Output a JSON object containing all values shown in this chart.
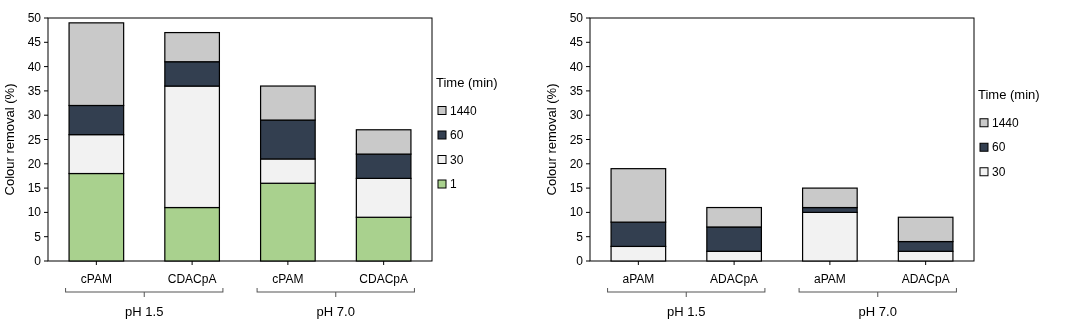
{
  "chart_data": [
    {
      "type": "bar",
      "stacked": true,
      "categories": [
        "cPAM",
        "CDACpA",
        "cPAM",
        "CDACpA"
      ],
      "ylabel": "Colour removal (%)",
      "ylim": [
        0,
        50
      ],
      "yticks": [
        0,
        5,
        10,
        15,
        20,
        25,
        30,
        35,
        40,
        45,
        50
      ],
      "legend": "right",
      "legend_title": "Time (min)",
      "annotations": [
        "pH 1.5",
        "pH 7.0"
      ],
      "series": [
        {
          "name": "1",
          "color": "#a9d18e",
          "values": [
            18,
            11,
            16,
            9
          ]
        },
        {
          "name": "30",
          "color": "#f2f2f2",
          "values": [
            8,
            25,
            5,
            8
          ]
        },
        {
          "name": "60",
          "color": "#333f50",
          "values": [
            6,
            5,
            8,
            5
          ]
        },
        {
          "name": "1440",
          "color": "#c9c9c9",
          "values": [
            17,
            6,
            7,
            5
          ]
        }
      ]
    },
    {
      "type": "bar",
      "stacked": true,
      "categories": [
        "aPAM",
        "ADACpA",
        "aPAM",
        "ADACpA"
      ],
      "ylabel": "Colour removal (%)",
      "ylim": [
        0,
        50
      ],
      "yticks": [
        0,
        5,
        10,
        15,
        20,
        25,
        30,
        35,
        40,
        45,
        50
      ],
      "legend": "right",
      "legend_title": "Time (min)",
      "annotations": [
        "pH 1.5",
        "pH 7.0"
      ],
      "series": [
        {
          "name": "30",
          "color": "#f2f2f2",
          "values": [
            3,
            2,
            10,
            2
          ]
        },
        {
          "name": "60",
          "color": "#333f50",
          "values": [
            5,
            5,
            1,
            2
          ]
        },
        {
          "name": "1440",
          "color": "#c9c9c9",
          "values": [
            11,
            4,
            4,
            5
          ]
        }
      ]
    }
  ]
}
